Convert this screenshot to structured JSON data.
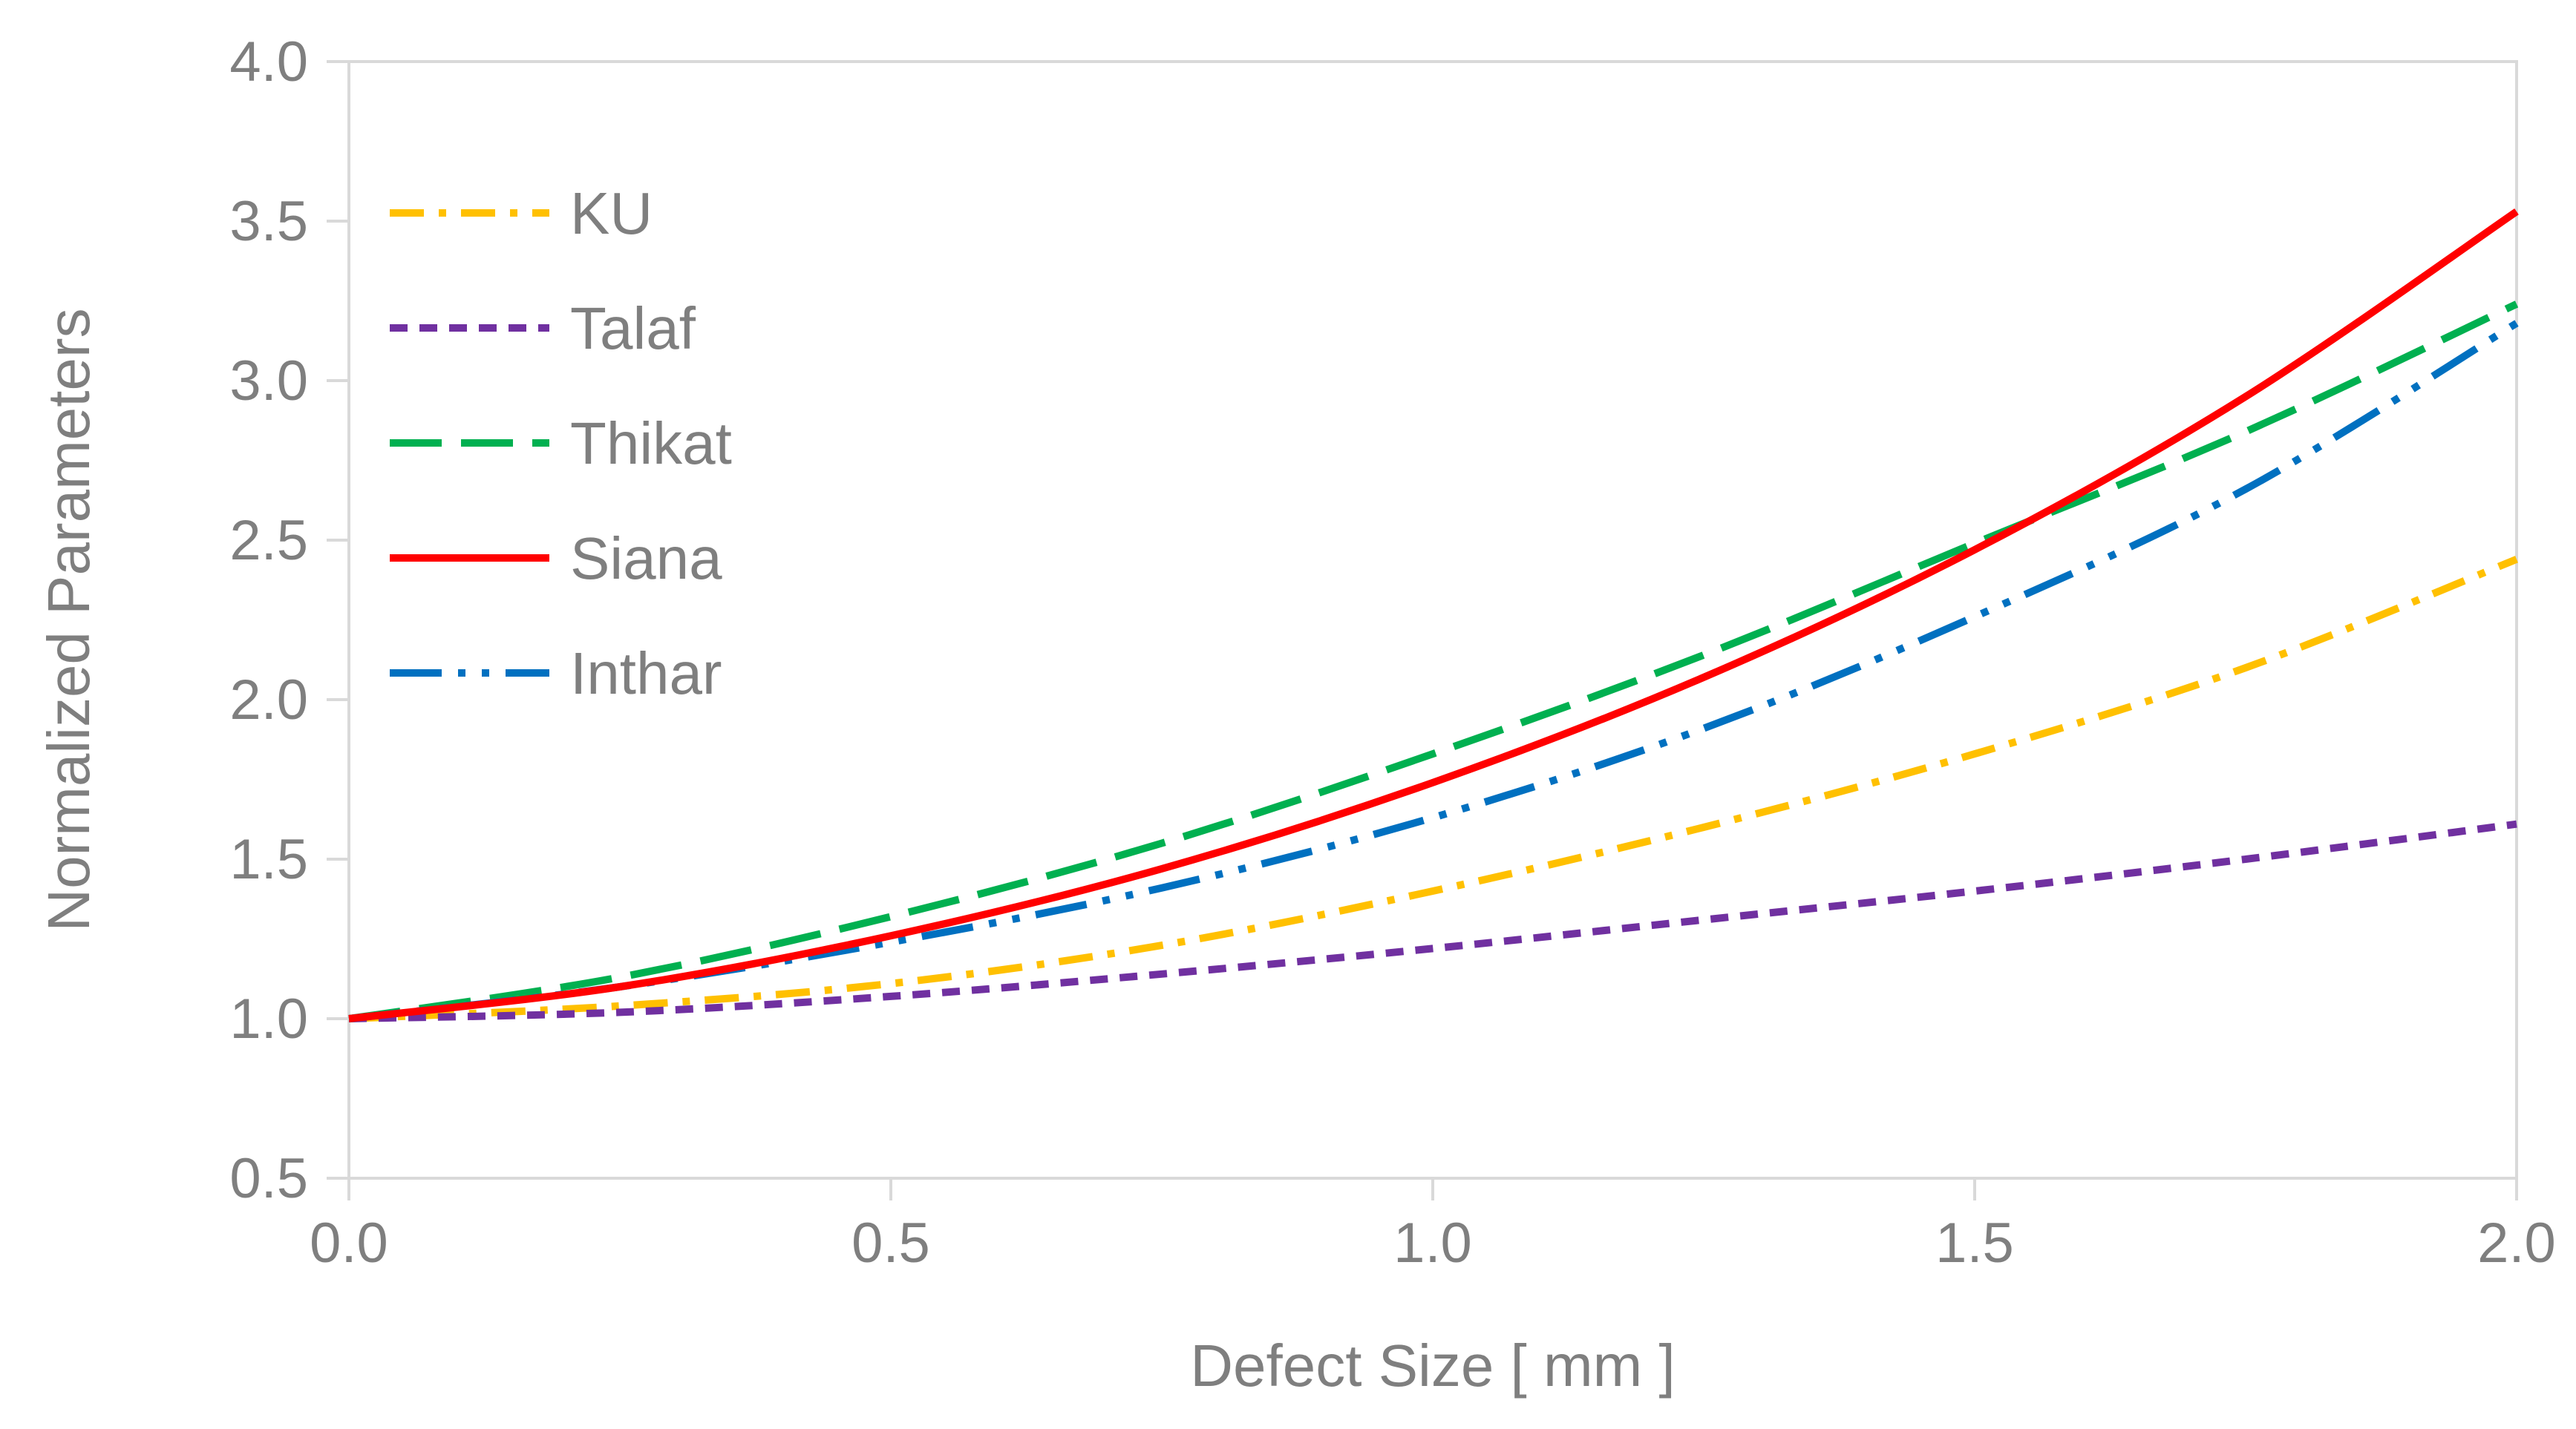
{
  "chart_data": {
    "type": "line",
    "title": "",
    "xlabel": "Defect Size  [ mm ]",
    "ylabel": "Normalized Parameters",
    "xlim": [
      0.0,
      2.0
    ],
    "ylim": [
      0.5,
      4.0
    ],
    "xticks": [
      "0.0",
      "0.5",
      "1.0",
      "1.5",
      "2.0"
    ],
    "yticks": [
      "0.5",
      "1.0",
      "1.5",
      "2.0",
      "2.5",
      "3.0",
      "3.5",
      "4.0"
    ],
    "grid": false,
    "legend_position": "top-left",
    "x": [
      0.0,
      0.25,
      0.5,
      0.75,
      1.0,
      1.25,
      1.5,
      1.75,
      2.0
    ],
    "series": [
      {
        "name": "KU",
        "color": "#FFC000",
        "style": "dash-dot",
        "values": [
          1.0,
          1.04,
          1.11,
          1.23,
          1.4,
          1.6,
          1.83,
          2.1,
          2.44
        ]
      },
      {
        "name": "Talaf",
        "color": "#7030A0",
        "style": "short-dash",
        "values": [
          1.0,
          1.02,
          1.07,
          1.14,
          1.22,
          1.31,
          1.4,
          1.5,
          1.61
        ]
      },
      {
        "name": "Thikat",
        "color": "#00B050",
        "style": "long-dash",
        "values": [
          1.0,
          1.13,
          1.32,
          1.55,
          1.83,
          2.14,
          2.49,
          2.84,
          3.24
        ]
      },
      {
        "name": "Siana",
        "color": "#FF0000",
        "style": "solid",
        "values": [
          1.0,
          1.1,
          1.26,
          1.47,
          1.74,
          2.07,
          2.47,
          2.95,
          3.53
        ]
      },
      {
        "name": "Inthar",
        "color": "#0070C0",
        "style": "long-dash-dot-dot",
        "values": [
          1.0,
          1.1,
          1.24,
          1.41,
          1.63,
          1.91,
          2.26,
          2.66,
          3.18
        ]
      }
    ]
  }
}
